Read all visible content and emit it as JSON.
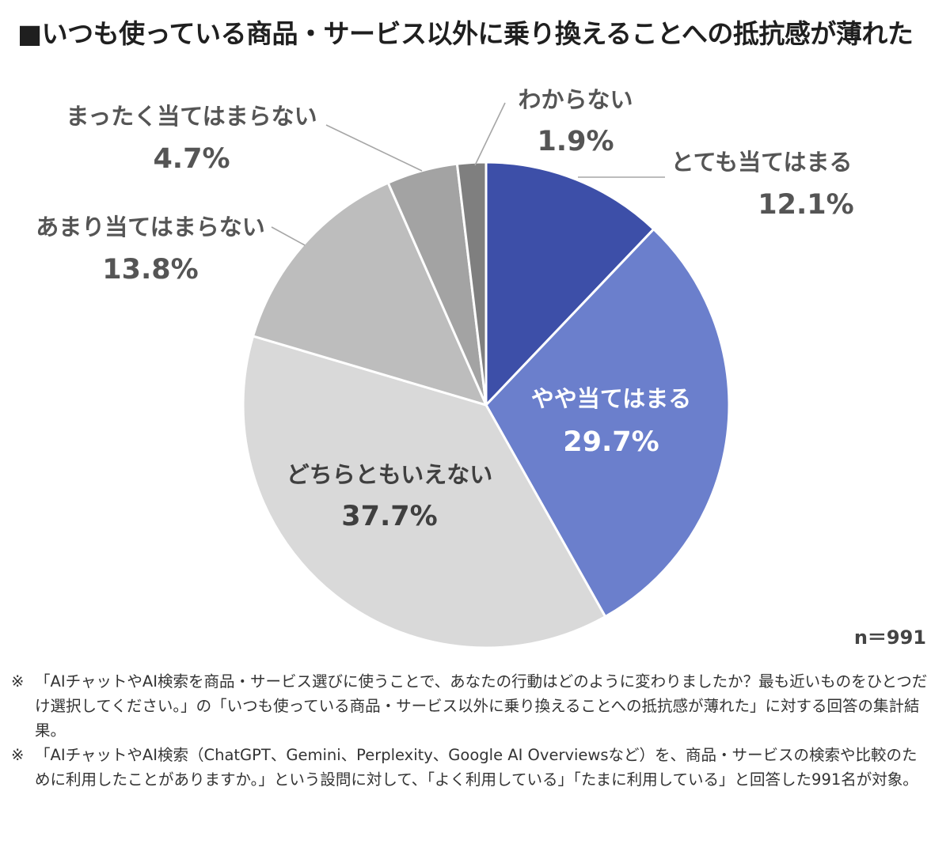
{
  "title": "■いつも使っている商品・サービス以外に乗り換えることへの抵抗感が薄れた",
  "n_label": "n＝991",
  "notes": [
    {
      "mark": "※",
      "text": "「AIチャットやAI検索を商品・サービス選びに使うことで、あなたの行動はどのように変わりましたか？最も近いものをひとつだけ選択してください。」の「いつも使っている商品・サービス以外に乗り換えることへの抵抗感が薄れた」に対する回答の集計結果。"
    },
    {
      "mark": "※",
      "text": "「AIチャットやAI検索（ChatGPT、Gemini、Perplexity、Google AI Overviewsなど）を、商品・サービスの検索や比較のために利用したことがありますか。」という設問に対して、「よく利用している」「たまに利用している」と回答した991名が対象。"
    }
  ],
  "chart_data": {
    "type": "pie",
    "start": "12 o'clock",
    "direction": "clockwise",
    "slices": [
      {
        "label": "とても当てはまる",
        "value": 12.1,
        "value_label": "12.1%",
        "color": "#3d4fa8"
      },
      {
        "label": "やや当てはまる",
        "value": 29.7,
        "value_label": "29.7%",
        "color": "#6b7fcc"
      },
      {
        "label": "どちらともいえない",
        "value": 37.7,
        "value_label": "37.7%",
        "color": "#d9d9d9"
      },
      {
        "label": "あまり当てはまらない",
        "value": 13.8,
        "value_label": "13.8%",
        "color": "#bdbdbd"
      },
      {
        "label": "まったく当てはまらない",
        "value": 4.7,
        "value_label": "4.7%",
        "color": "#a3a3a3"
      },
      {
        "label": "わからない",
        "value": 1.9,
        "value_label": "1.9%",
        "color": "#7f7f7f"
      }
    ]
  }
}
